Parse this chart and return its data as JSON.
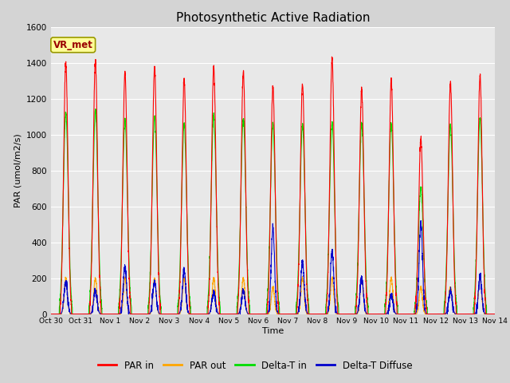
{
  "title": "Photosynthetic Active Radiation",
  "ylabel": "PAR (umol/m2/s)",
  "xlabel": "Time",
  "ylim": [
    0,
    1600
  ],
  "fig_bg_color": "#d4d4d4",
  "plot_bg_color": "#e8e8e8",
  "annotation_text": "VR_met",
  "legend_items": [
    "PAR in",
    "PAR out",
    "Delta-T in",
    "Delta-T Diffuse"
  ],
  "legend_colors": [
    "#ff0000",
    "#ffa500",
    "#00dd00",
    "#0000cc"
  ],
  "n_days": 15,
  "tick_labels": [
    "Oct 30",
    "Oct 31",
    "Nov 1",
    "Nov 2",
    "Nov 3",
    "Nov 4",
    "Nov 5",
    "Nov 6",
    "Nov 7",
    "Nov 8",
    "Nov 9",
    "Nov 10",
    "Nov 11",
    "Nov 12",
    "Nov 13",
    "Nov 14"
  ],
  "par_in_peaks": [
    1400,
    1410,
    1350,
    1370,
    1305,
    1380,
    1350,
    1265,
    1285,
    1420,
    1255,
    1295,
    975,
    1290,
    1325
  ],
  "par_out_peaks": [
    200,
    200,
    200,
    200,
    200,
    200,
    200,
    150,
    200,
    200,
    200,
    200,
    150,
    150,
    200
  ],
  "delta_t_in_peaks": [
    1120,
    1130,
    1080,
    1100,
    1060,
    1110,
    1090,
    1060,
    1050,
    1065,
    1060,
    1060,
    700,
    1050,
    1090
  ],
  "delta_t_diff_peaks": [
    180,
    130,
    260,
    180,
    240,
    120,
    130,
    480,
    290,
    350,
    200,
    105,
    510,
    130,
    210
  ]
}
